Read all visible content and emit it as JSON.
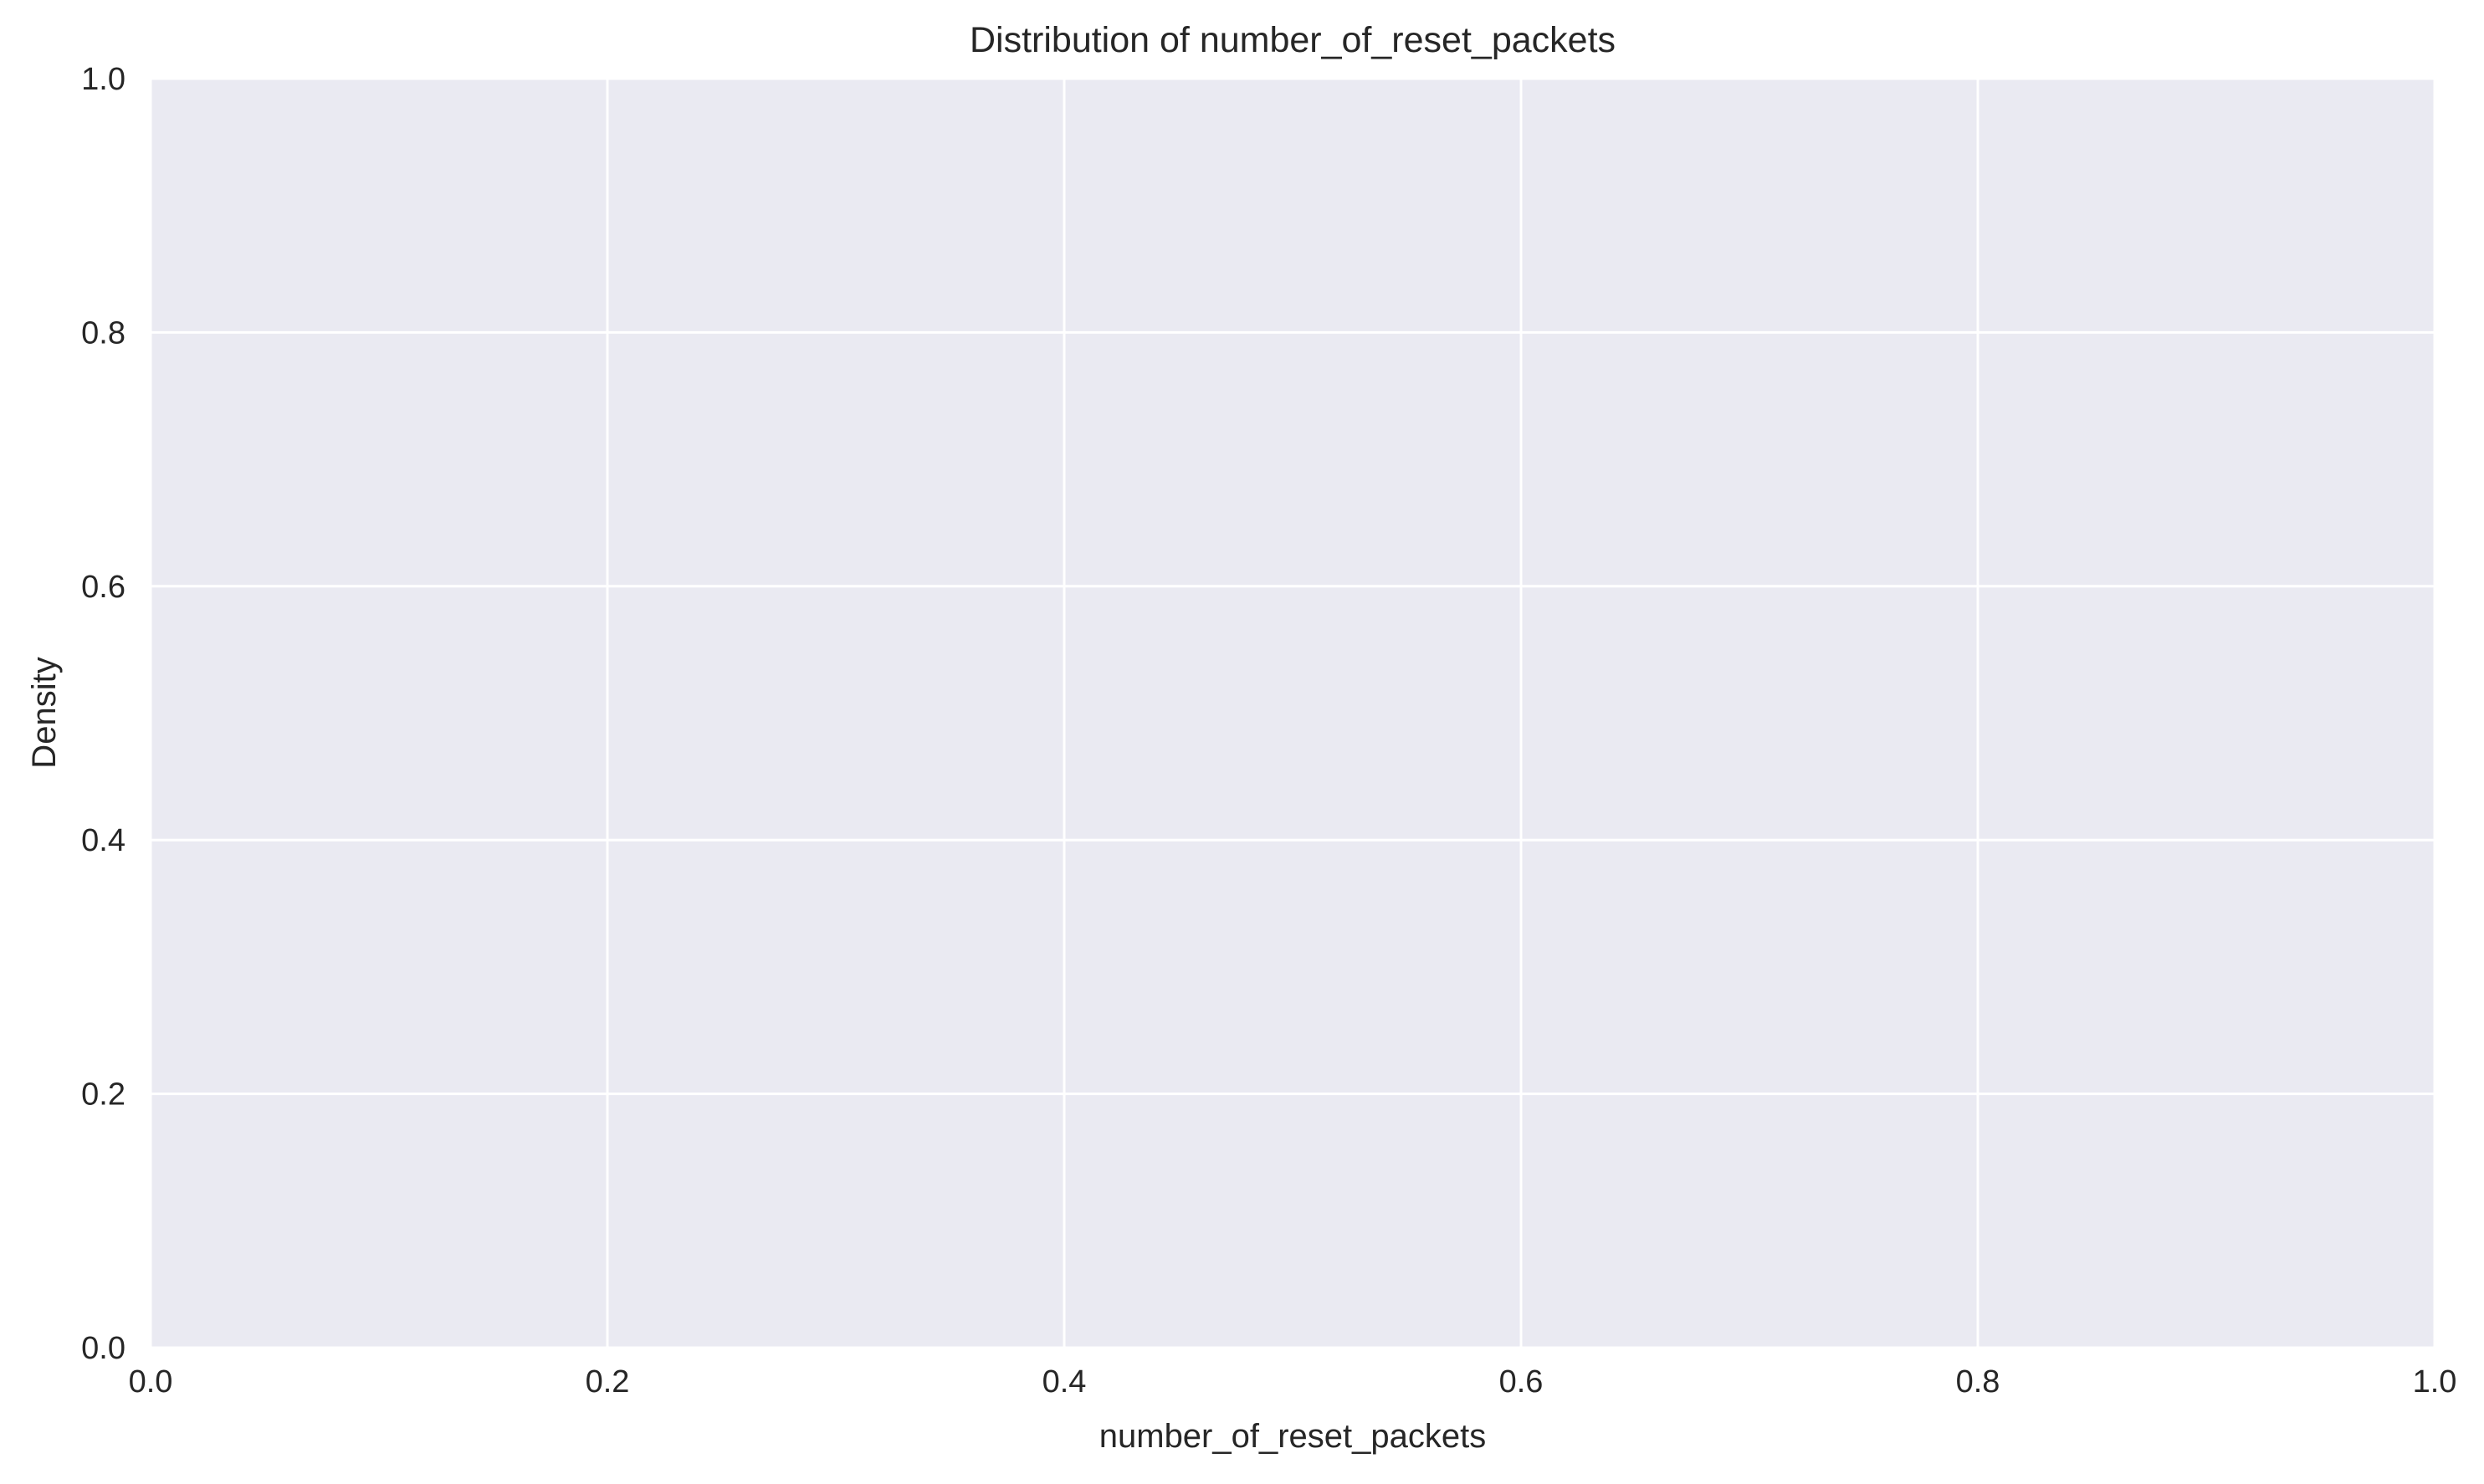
{
  "chart_data": {
    "type": "area",
    "title": "Distribution of number_of_reset_packets",
    "xlabel": "number_of_reset_packets",
    "ylabel": "Density",
    "xlim": [
      0.0,
      1.0
    ],
    "ylim": [
      0.0,
      1.0
    ],
    "x_ticks": [
      "0.0",
      "0.2",
      "0.4",
      "0.6",
      "0.8",
      "1.0"
    ],
    "y_ticks": [
      "0.0",
      "0.2",
      "0.4",
      "0.6",
      "0.8",
      "1.0"
    ],
    "x_tick_values": [
      0.0,
      0.2,
      0.4,
      0.6,
      0.8,
      1.0
    ],
    "y_tick_values": [
      0.0,
      0.2,
      0.4,
      0.6,
      0.8,
      1.0
    ],
    "series": [],
    "grid": true,
    "legend": "none",
    "colors": {
      "plot_background": "#eaeaf2",
      "grid": "#ffffff",
      "text": "#262626"
    }
  }
}
